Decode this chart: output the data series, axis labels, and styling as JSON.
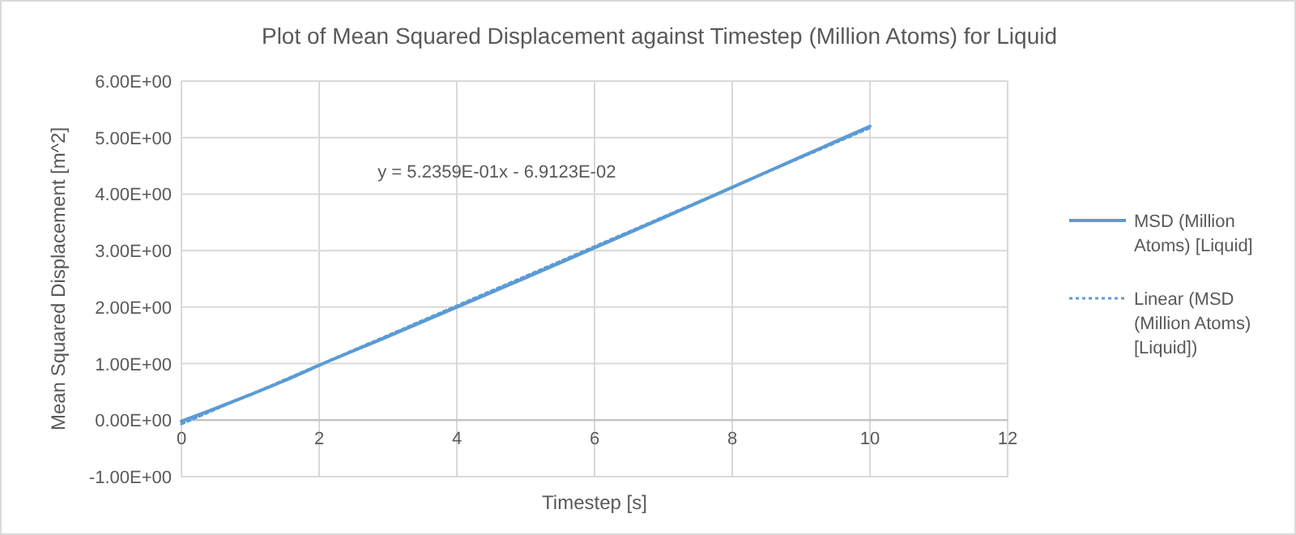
{
  "chart_data": {
    "type": "line",
    "title": "Plot of Mean Squared Displacement against Timestep (Million Atoms) for Liquid",
    "xlabel": "Timestep [s]",
    "ylabel": "Mean Squared Displacement [m^2]",
    "x": [
      0,
      0.5,
      1,
      1.5,
      2,
      3,
      4,
      5,
      6,
      7,
      8,
      9,
      10
    ],
    "series": [
      {
        "name": "MSD (Million Atoms) [Liquid]",
        "color": "#5b9bd5",
        "values": [
          -0.02,
          0.21,
          0.45,
          0.7,
          0.97,
          1.48,
          2.0,
          2.52,
          3.05,
          3.58,
          4.12,
          4.66,
          5.2
        ],
        "line_style": "solid"
      },
      {
        "name": "Linear (MSD (Million Atoms) [Liquid])",
        "type": "line",
        "color": "#5b9bd5",
        "x": [
          0,
          10
        ],
        "values": [
          -0.07,
          5.17
        ],
        "line_style": "dotted"
      }
    ],
    "xlim": [
      0,
      12
    ],
    "xticks": [
      0,
      2,
      4,
      6,
      8,
      10,
      12
    ],
    "ylim": [
      -1,
      6
    ],
    "yticks": [
      {
        "value": -1,
        "label": "-1.00E+00"
      },
      {
        "value": 0,
        "label": "0.00E+00"
      },
      {
        "value": 1,
        "label": "1.00E+00"
      },
      {
        "value": 2,
        "label": "2.00E+00"
      },
      {
        "value": 3,
        "label": "3.00E+00"
      },
      {
        "value": 4,
        "label": "4.00E+00"
      },
      {
        "value": 5,
        "label": "5.00E+00"
      },
      {
        "value": 6,
        "label": "6.00E+00"
      }
    ],
    "annotations": [
      "y = 5.2359E-01x - 6.9123E-02"
    ],
    "grid": true,
    "legend": "right",
    "marker": "none"
  }
}
